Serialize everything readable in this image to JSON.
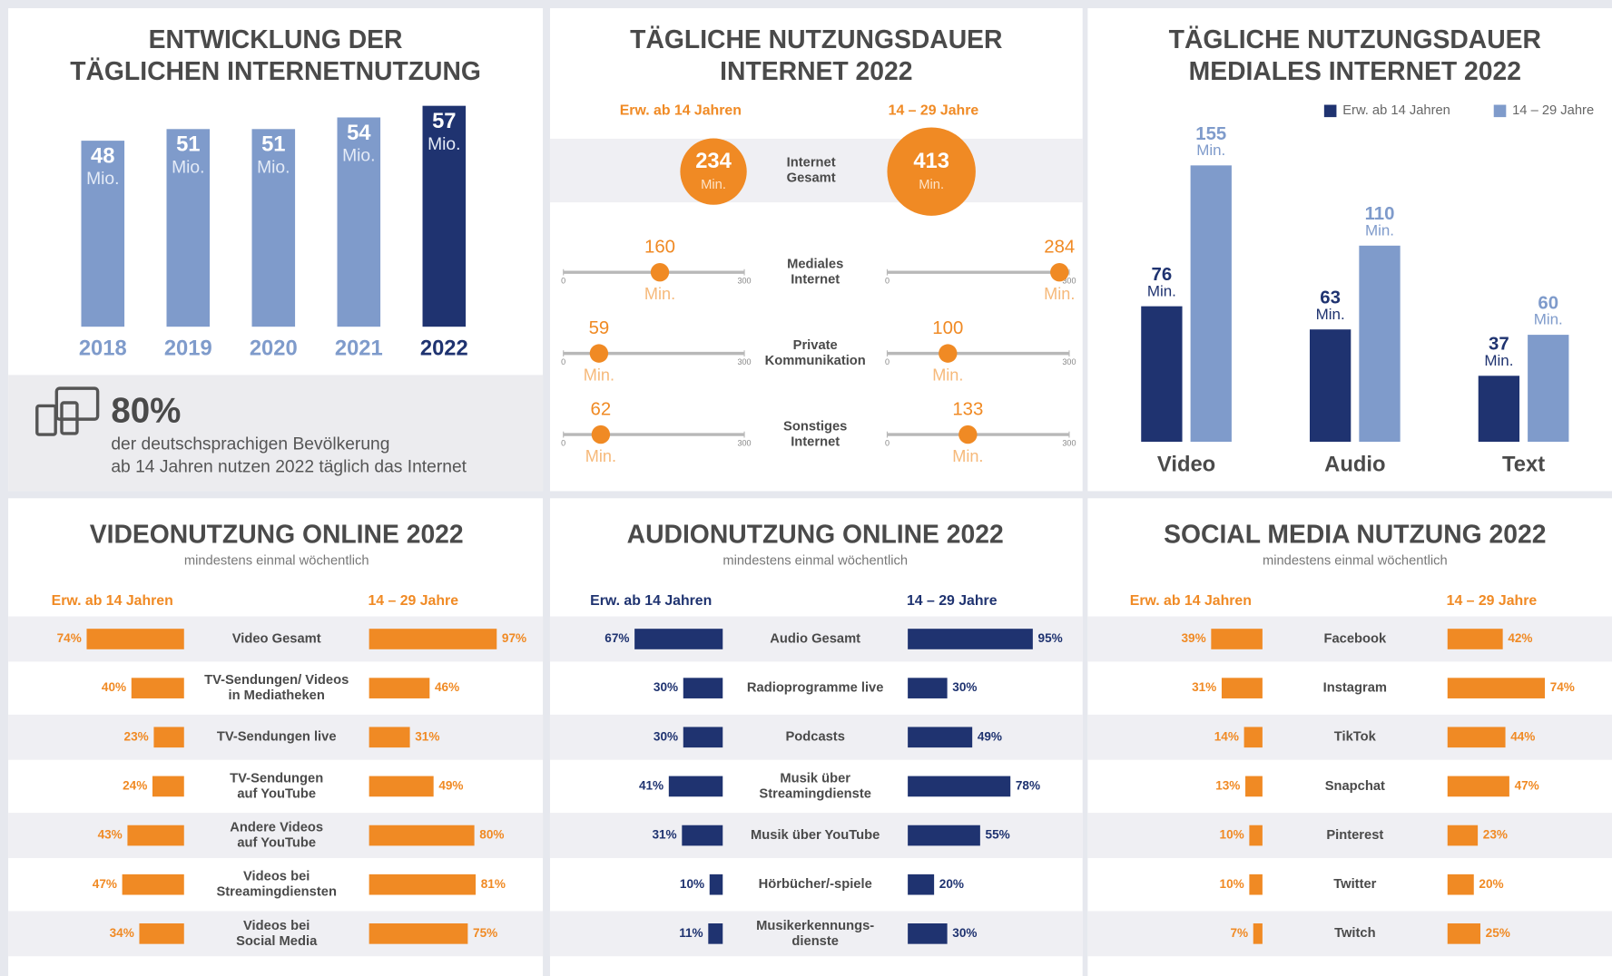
{
  "chart_data": [
    {
      "type": "bar",
      "title": [
        "ENTWICKLUNG DER",
        "TÄGLICHEN INTERNETNUTZUNG"
      ],
      "categories": [
        "2018",
        "2019",
        "2020",
        "2021",
        "2022"
      ],
      "values": [
        48,
        51,
        51,
        54,
        57
      ],
      "unit": "Mio.",
      "colors": [
        "#7f9bcb",
        "#7f9bcb",
        "#7f9bcb",
        "#7f9bcb",
        "#1f3370"
      ],
      "stat": "80%",
      "stat_text": [
        "der deutschsprachigen Bevölkerung",
        "ab 14 Jahren nutzen 2022 täglich das Internet"
      ]
    },
    {
      "type": "dot",
      "title": [
        "TÄGLICHE NUTZUNGSDAUER",
        "INTERNET 2022"
      ],
      "categories": [
        "Internet\nGesamt",
        "Mediales\nInternet",
        "Private\nKommunikation",
        "Sonstiges\nInternet"
      ],
      "series": [
        {
          "name": "Erw. ab 14 Jahren",
          "color": "#f08a24",
          "values": [
            234,
            160,
            59,
            62
          ]
        },
        {
          "name": "14 – 29 Jahre",
          "color": "#f08a24",
          "values": [
            413,
            284,
            100,
            133
          ]
        }
      ],
      "unit": "Min.",
      "xlim": [
        0,
        300
      ],
      "xticks": [
        0,
        300
      ]
    },
    {
      "type": "grouped-bar",
      "title": [
        "TÄGLICHE NUTZUNGSDAUER",
        "MEDIALES INTERNET 2022"
      ],
      "categories": [
        "Video",
        "Audio",
        "Text"
      ],
      "series": [
        {
          "name": "Erw. ab 14 Jahren",
          "color": "#1f3370",
          "values": [
            76,
            63,
            37
          ]
        },
        {
          "name": "14 – 29 Jahre",
          "color": "#7f9bcb",
          "values": [
            155,
            110,
            60
          ]
        }
      ],
      "unit": "Min."
    },
    {
      "type": "butterfly",
      "title": "VIDEONUTZUNG ONLINE 2022",
      "subtitle": "mindestens einmal wöchentlich",
      "categories": [
        "Video Gesamt",
        "TV-Sendungen/ Videos\nin Mediatheken",
        "TV-Sendungen live",
        "TV-Sendungen\nauf YouTube",
        "Andere Videos\nauf YouTube",
        "Videos bei\nStreamingdiensten",
        "Videos bei\nSocial Media"
      ],
      "series": [
        {
          "name": "Erw. ab 14 Jahren",
          "color": "#f08a24",
          "values": [
            74,
            40,
            23,
            24,
            43,
            47,
            34
          ],
          "value_labels": [
            "74%",
            "40%",
            "23%",
            "24%",
            "43%",
            "47%",
            "34%"
          ]
        },
        {
          "name": "14 – 29 Jahre",
          "color": "#f08a24",
          "values": [
            97,
            46,
            31,
            49,
            80,
            81,
            75
          ],
          "value_labels": [
            "97%",
            "46%",
            "31%",
            "49%",
            "80%",
            "81%",
            "75%"
          ]
        }
      ]
    },
    {
      "type": "butterfly",
      "title": "AUDIONUTZUNG ONLINE 2022",
      "subtitle": "mindestens einmal wöchentlich",
      "categories": [
        "Audio Gesamt",
        "Radioprogramme live",
        "Podcasts",
        "Musik über\nStreamingdienste",
        "Musik über YouTube",
        "Hörbücher/-spiele",
        "Musikerkennungs-\ndienste"
      ],
      "series": [
        {
          "name": "Erw. ab 14 Jahren",
          "color": "#1f3370",
          "values": [
            67,
            30,
            30,
            41,
            31,
            10,
            11
          ],
          "value_labels": [
            "67%",
            "30%",
            "30%",
            "41%",
            "31%",
            "10%",
            "11%"
          ]
        },
        {
          "name": "14 – 29 Jahre",
          "color": "#1f3370",
          "values": [
            95,
            30,
            49,
            78,
            55,
            20,
            30
          ],
          "value_labels": [
            "95%",
            "30%",
            "49%",
            "78%",
            "55%",
            "20%",
            "30%"
          ]
        }
      ]
    },
    {
      "type": "butterfly",
      "title": "SOCIAL MEDIA NUTZUNG 2022",
      "subtitle": "mindestens einmal wöchentlich",
      "categories": [
        "Facebook",
        "Instagram",
        "TikTok",
        "Snapchat",
        "Pinterest",
        "Twitter",
        "Twitch"
      ],
      "series": [
        {
          "name": "Erw. ab 14 Jahren",
          "color": "#f08a24",
          "values": [
            39,
            31,
            14,
            13,
            10,
            10,
            7
          ],
          "value_labels": [
            "39%",
            "31%",
            "14%",
            "13%",
            "10%",
            "10%",
            "7%"
          ]
        },
        {
          "name": "14 – 29 Jahre",
          "color": "#f08a24",
          "values": [
            42,
            74,
            44,
            47,
            23,
            20,
            25
          ],
          "value_labels": [
            "42%",
            "74%",
            "44%",
            "47%",
            "23%",
            "20%",
            "25%"
          ]
        }
      ]
    }
  ]
}
